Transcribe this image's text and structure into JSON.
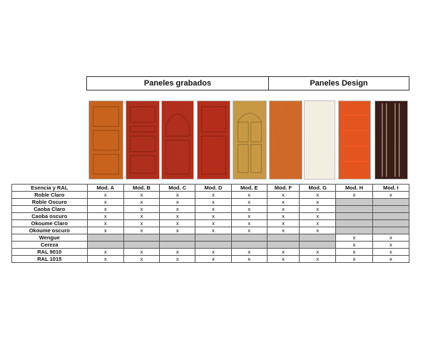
{
  "groups": {
    "grabados": "Paneles grabados",
    "design": "Paneles Design"
  },
  "doors": [
    {
      "model": "Mod. A",
      "color": "#c9631d",
      "style": "panels3"
    },
    {
      "model": "Mod. B",
      "color": "#b02f1c",
      "style": "panels5"
    },
    {
      "model": "Mod. C",
      "color": "#b22f1e",
      "style": "arch"
    },
    {
      "model": "Mod. D",
      "color": "#b52e1c",
      "style": "panels2"
    },
    {
      "model": "Mod. E",
      "color": "#c89a44",
      "style": "ornate"
    },
    {
      "model": "Mod. F",
      "color": "#d06a2a",
      "style": "plain"
    },
    {
      "model": "Mod. G",
      "color": "#f4f0e2",
      "style": "plain"
    },
    {
      "model": "Mod. H",
      "color": "#e5561f",
      "style": "stripes-h"
    },
    {
      "model": "Mod. I",
      "color": "#3a1e18",
      "style": "stripes-v"
    }
  ],
  "table": {
    "header_label": "Esencia y RAL",
    "columns": [
      "Mod. A",
      "Mod. B",
      "Mod. C",
      "Mod. D",
      "Mod. E",
      "Mod. F",
      "Mod. G",
      "Mod. H",
      "Mod. I"
    ],
    "rows": [
      {
        "label": "Roble Claro",
        "cells": [
          "x",
          "x",
          "x",
          "x",
          "x",
          "x",
          "x",
          "x",
          "x"
        ]
      },
      {
        "label": "Roble Oscuro",
        "cells": [
          "x",
          "x",
          "x",
          "x",
          "x",
          "x",
          "x",
          null,
          null
        ]
      },
      {
        "label": "Caoba Claro",
        "cells": [
          "x",
          "x",
          "x",
          "x",
          "x",
          "x",
          "x",
          null,
          null
        ]
      },
      {
        "label": "Caoba oscuro",
        "cells": [
          "x",
          "x",
          "x",
          "x",
          "x",
          "x",
          "x",
          null,
          null
        ]
      },
      {
        "label": "Okoume Claro",
        "cells": [
          "x",
          "x",
          "x",
          "x",
          "x",
          "x",
          "x",
          null,
          null
        ]
      },
      {
        "label": "Okoume oscuro",
        "cells": [
          "x",
          "x",
          "x",
          "x",
          "x",
          "x",
          "x",
          null,
          null
        ]
      },
      {
        "label": "Wengue",
        "cells": [
          null,
          null,
          null,
          null,
          null,
          null,
          null,
          "x",
          "x"
        ]
      },
      {
        "label": "Cereza",
        "cells": [
          null,
          null,
          null,
          null,
          null,
          null,
          null,
          "x",
          "x"
        ]
      },
      {
        "label": "RAL 9010",
        "cells": [
          "x",
          "x",
          "x",
          "x",
          "x",
          "x",
          "x",
          "x",
          "x"
        ]
      },
      {
        "label": "RAL 1015",
        "cells": [
          "x",
          "x",
          "x",
          "x",
          "x",
          "x",
          "x",
          "x",
          "x"
        ]
      }
    ]
  }
}
